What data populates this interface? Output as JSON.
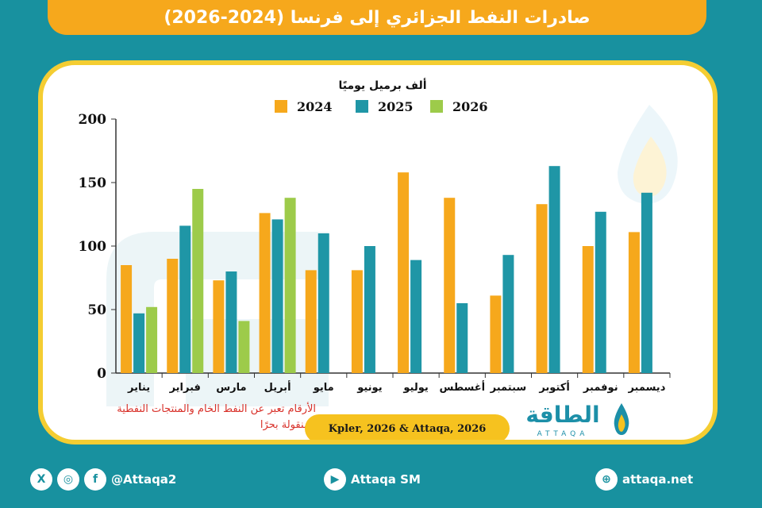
{
  "title": "صادرات النفط الجزائري إلى فرنسا (2024-2026)",
  "unit_label": "ألف برميل يوميًا",
  "note": "الأرقام تعبر عن النفط الخام والمنتجات النفطية المنقولة بحرًا",
  "source": "Kpler, 2026 & Attaqa, 2026",
  "logo": {
    "arabic": "الطاقة",
    "latin": "ATTAQA"
  },
  "footer": {
    "handle": "@Attaqa2",
    "youtube": "Attaqa SM",
    "website": "attaqa.net",
    "icons": [
      "x-icon",
      "instagram-icon",
      "facebook-icon",
      "youtube-icon",
      "globe-icon"
    ]
  },
  "colors": {
    "accent": "#f6a81c",
    "frame": "#f4cd32",
    "background": "#18919f"
  },
  "chart_data": {
    "type": "bar",
    "ylim": [
      0,
      200
    ],
    "yticks": [
      0,
      50,
      100,
      150,
      200
    ],
    "categories": [
      "يناير",
      "فبراير",
      "مارس",
      "أبريل",
      "مايو",
      "يونيو",
      "يوليو",
      "أغسطس",
      "سبتمبر",
      "أكتوبر",
      "نوفمبر",
      "ديسمبر"
    ],
    "series": [
      {
        "name": "2024",
        "color": "#f6a81c",
        "values": [
          85,
          90,
          73,
          126,
          81,
          81,
          158,
          138,
          61,
          133,
          100,
          111
        ]
      },
      {
        "name": "2025",
        "color": "#1f96a6",
        "values": [
          47,
          116,
          80,
          121,
          110,
          100,
          89,
          55,
          93,
          163,
          127,
          142
        ]
      },
      {
        "name": "2026",
        "color": "#9dcb4a",
        "values": [
          52,
          145,
          41,
          138,
          null,
          null,
          null,
          null,
          null,
          null,
          null,
          null
        ]
      }
    ],
    "legend_position": "top-center",
    "grid": false
  }
}
